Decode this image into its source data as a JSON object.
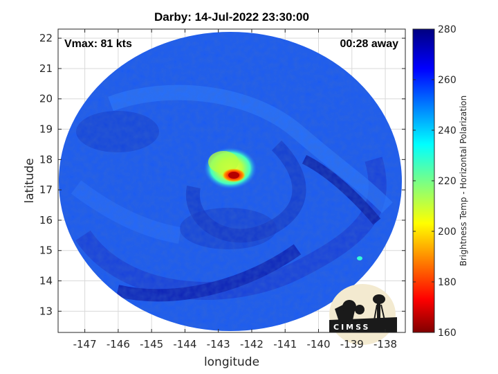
{
  "chart_data": {
    "type": "heatmap",
    "title": "Darby: 14-Jul-2022 23:30:00",
    "xlabel": "longitude",
    "ylabel": "latitude",
    "xlim": [
      -147.8,
      -137.4
    ],
    "ylim": [
      12.3,
      22.3
    ],
    "x_ticks": [
      -147,
      -146,
      -145,
      -144,
      -143,
      -142,
      -141,
      -140,
      -139,
      -138
    ],
    "y_ticks": [
      13,
      14,
      15,
      16,
      17,
      18,
      19,
      20,
      21,
      22
    ],
    "grid": true,
    "annotations": {
      "vmax": "Vmax: 81 kts",
      "time_offset": "00:28 away"
    },
    "colorbar": {
      "label": "Brightness Temp - Horizontal Polarization",
      "range": [
        160,
        280
      ],
      "ticks": [
        160,
        180,
        200,
        220,
        240,
        260,
        280
      ],
      "colormap": "jet"
    },
    "features": {
      "swath_center": [
        -142.8,
        17.3
      ],
      "background_temp": 262,
      "storm_center": [
        -142.6,
        17.45
      ],
      "eyewall_min_temp": 178,
      "inner_core_temp": 220,
      "rainband_temp": 258
    }
  },
  "logo": {
    "text": "CIMSS"
  },
  "colors": {
    "grid": "#d9d9d9",
    "axis": "#262626"
  }
}
